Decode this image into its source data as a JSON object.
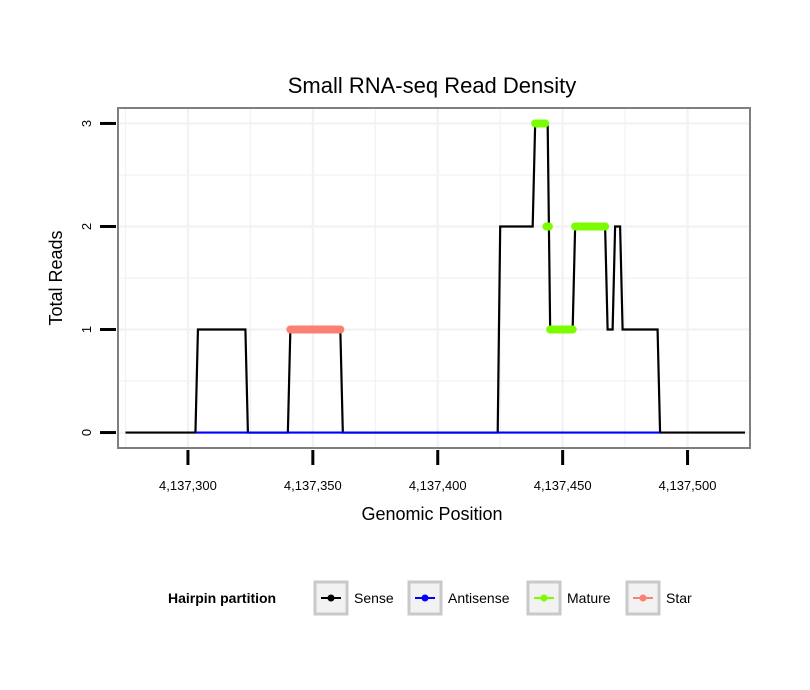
{
  "chart_data": {
    "type": "line",
    "title": "Small RNA-seq Read Density",
    "xlabel": "Genomic Position",
    "ylabel": "Total Reads",
    "xlim": [
      4137272,
      4137525
    ],
    "ylim": [
      -0.15,
      3.15
    ],
    "xticks": [
      4137300,
      4137350,
      4137400,
      4137450,
      4137500
    ],
    "xtick_labels": [
      "4,137,300",
      "4,137,350",
      "4,137,400",
      "4,137,450",
      "4,137,500"
    ],
    "yticks": [
      0,
      1,
      2,
      3
    ],
    "ytick_labels": [
      "0",
      "1",
      "2",
      "3"
    ],
    "grid": true,
    "legend": {
      "title": "Hairpin partition",
      "position": "bottom",
      "entries": [
        {
          "name": "Sense",
          "color": "#000000"
        },
        {
          "name": "Antisense",
          "color": "#0000ff"
        },
        {
          "name": "Mature",
          "color": "#7cfc00"
        },
        {
          "name": "Star",
          "color": "#fa8072"
        }
      ]
    },
    "series": [
      {
        "name": "Sense",
        "color": "#000000",
        "x": [
          4137275,
          4137303,
          4137304,
          4137323,
          4137324,
          4137340,
          4137341,
          4137361,
          4137362,
          4137424,
          4137425,
          4137438,
          4137439,
          4137444,
          4137445,
          4137454,
          4137455,
          4137467,
          4137468,
          4137470,
          4137471,
          4137473,
          4137474,
          4137488,
          4137489,
          4137523
        ],
        "y": [
          0,
          0,
          1,
          1,
          0,
          0,
          1,
          1,
          0,
          0,
          2,
          2,
          3,
          3,
          1,
          1,
          2,
          2,
          1,
          1,
          2,
          2,
          1,
          1,
          0,
          0
        ]
      },
      {
        "name": "Antisense",
        "color": "#0000ff",
        "x": [
          4137303,
          4137489
        ],
        "y": [
          0,
          0
        ]
      },
      {
        "name": "Mature",
        "color": "#7cfc00",
        "segments": [
          {
            "x": [
              4137439,
              4137443
            ],
            "y": 3
          },
          {
            "x": [
              4137443.5,
              4137444.5
            ],
            "y": 2
          },
          {
            "x": [
              4137445,
              4137454
            ],
            "y": 1
          },
          {
            "x": [
              4137455,
              4137467
            ],
            "y": 2
          }
        ]
      },
      {
        "name": "Star",
        "color": "#fa8072",
        "segments": [
          {
            "x": [
              4137341,
              4137361
            ],
            "y": 1
          }
        ]
      }
    ]
  }
}
